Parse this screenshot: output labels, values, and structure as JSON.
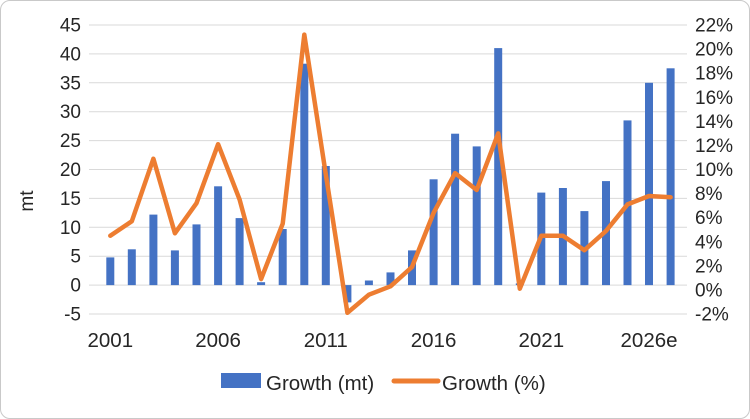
{
  "chart_data": {
    "type": "bar+line combo",
    "title": "",
    "x_years": [
      2001,
      2002,
      2003,
      2004,
      2005,
      2006,
      2007,
      2008,
      2009,
      2010,
      2011,
      2012,
      2013,
      2014,
      2015,
      2016,
      2017,
      2018,
      2019,
      2020,
      2021,
      2022,
      2023,
      2024,
      2025,
      2026,
      2027
    ],
    "x_tick_labels": [
      {
        "index": 0,
        "label": "2001"
      },
      {
        "index": 5,
        "label": "2006"
      },
      {
        "index": 10,
        "label": "2011"
      },
      {
        "index": 15,
        "label": "2016"
      },
      {
        "index": 20,
        "label": "2021"
      },
      {
        "index": 25,
        "label": "2026e"
      }
    ],
    "series": [
      {
        "name": "Growth (mt)",
        "type": "bar",
        "axis": "left",
        "color": "#4472C4",
        "values": [
          4.8,
          6.2,
          12.2,
          6.0,
          10.5,
          17.1,
          11.6,
          0.5,
          9.7,
          38.3,
          20.6,
          -3.0,
          0.8,
          2.2,
          6.0,
          18.3,
          26.2,
          24.0,
          41.0,
          0.3,
          16.0,
          16.8,
          12.8,
          18.0,
          28.5,
          35.0,
          37.5
        ]
      },
      {
        "name": "Growth (%)",
        "type": "line",
        "axis": "right",
        "color": "#ED7D31",
        "values": [
          4.5,
          5.7,
          10.9,
          4.7,
          7.2,
          12.1,
          7.5,
          0.9,
          5.5,
          21.2,
          9.6,
          -1.9,
          -0.4,
          0.3,
          1.9,
          6.4,
          9.7,
          8.3,
          13.0,
          0.1,
          4.5,
          4.5,
          3.3,
          4.9,
          7.1,
          7.8,
          7.7
        ]
      }
    ],
    "left_axis": {
      "title": "mt",
      "min": -5,
      "max": 45,
      "step": 5
    },
    "right_axis": {
      "min": -2,
      "max": 22,
      "step": 2,
      "suffix": "%"
    },
    "legend": [
      {
        "label": "Growth (mt)",
        "swatch": "bar",
        "color": "#4472C4"
      },
      {
        "label": "Growth (%)",
        "swatch": "line",
        "color": "#ED7D31"
      }
    ],
    "grid": {
      "show": true,
      "color": "#D9D9D9"
    },
    "colors": {
      "bar": "#4472C4",
      "line": "#ED7D31",
      "text": "#262626",
      "border": "#C9C9C9",
      "background": "#FFFFFF"
    }
  }
}
